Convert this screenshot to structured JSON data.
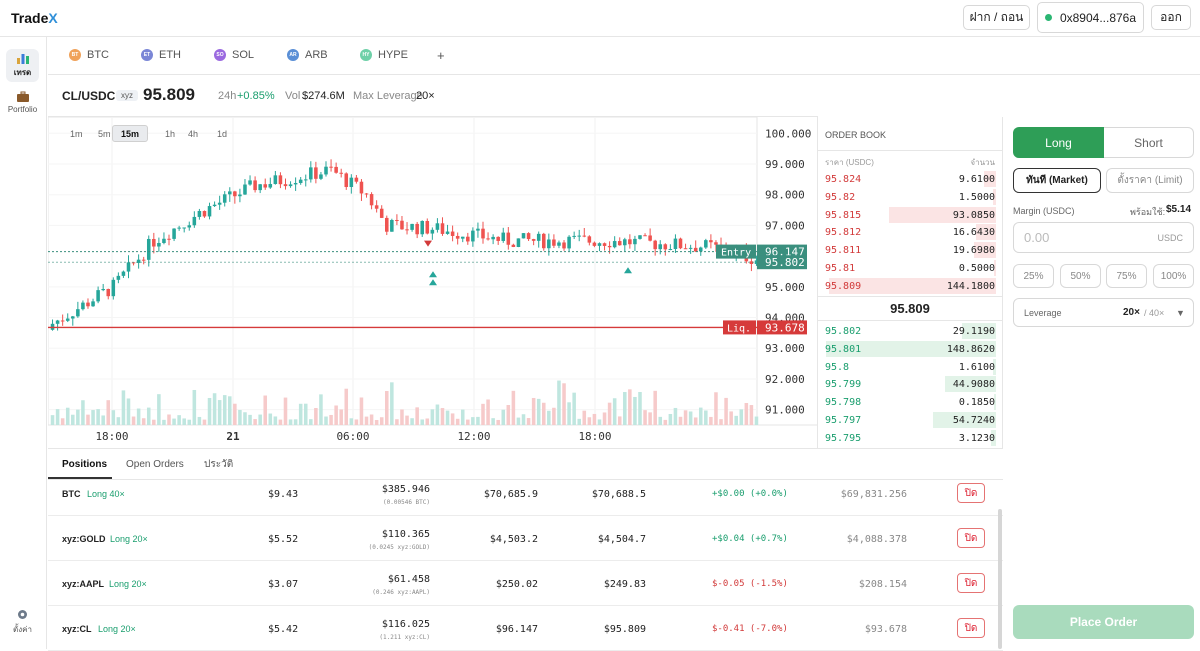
{
  "app": {
    "logo_main": "Trade",
    "logo_accent": "X"
  },
  "topbar": {
    "deposit_label": "ฝาก / ถอน",
    "wallet_address": "0x8904...876a",
    "logout_label": "ออก"
  },
  "sidebar": {
    "items": [
      {
        "label": "เทรด",
        "icon": "chart-icon"
      },
      {
        "label": "Portfolio",
        "icon": "briefcase-icon"
      },
      {
        "label": "ตั้งค่า",
        "icon": "gear-icon"
      }
    ]
  },
  "assets": [
    {
      "symbol": "BTC",
      "badge": "BT",
      "color": "#f0a25a"
    },
    {
      "symbol": "ETH",
      "badge": "ET",
      "color": "#7a86d6"
    },
    {
      "symbol": "SOL",
      "badge": "SO",
      "color": "#9b6ae0"
    },
    {
      "symbol": "ARB",
      "badge": "AR",
      "color": "#5a8fd6"
    },
    {
      "symbol": "HYPE",
      "badge": "HY",
      "color": "#6ed0a8"
    }
  ],
  "add_tab": "+",
  "market": {
    "pair": "CL/USDC",
    "tag": "xyz",
    "price": "95.809",
    "change_label": "24h",
    "change": "+0.85%",
    "vol_label": "Vol",
    "vol": "$274.6M",
    "lev_label": "Max Leverage",
    "lev": "20×"
  },
  "timeframes": [
    "1m",
    "5m",
    "15m",
    "1h",
    "4h",
    "1d"
  ],
  "active_timeframe": "15m",
  "chart_data": {
    "type": "candlestick",
    "y_ticks": [
      "100.000",
      "99.000",
      "98.000",
      "97.000",
      "95.000",
      "94.000",
      "93.000",
      "92.000",
      "91.000"
    ],
    "x_ticks": [
      "18:00",
      "21",
      "06:00",
      "12:00",
      "18:00"
    ],
    "entry_label": "Entry",
    "entry_price": "96.147",
    "current_price": "95.802",
    "liq_label": "Liq.",
    "liq_price": "93.678",
    "ylim": [
      90.5,
      100.4
    ],
    "colors": {
      "up": "#26a69a",
      "down": "#ef5350",
      "liq": "#d63a3a",
      "entry": "#3a8f7e"
    }
  },
  "orderbook": {
    "title": "ORDER BOOK",
    "col_price": "ราคา (USDC)",
    "col_qty": "จำนวน",
    "asks": [
      {
        "price": "95.824",
        "qty": "9.6100",
        "depth": 0.07
      },
      {
        "price": "95.82",
        "qty": "1.5000",
        "depth": 0.02
      },
      {
        "price": "95.815",
        "qty": "93.0850",
        "depth": 0.63
      },
      {
        "price": "95.812",
        "qty": "16.6430",
        "depth": 0.12
      },
      {
        "price": "95.811",
        "qty": "19.6980",
        "depth": 0.13
      },
      {
        "price": "95.81",
        "qty": "0.5000",
        "depth": 0.01
      },
      {
        "price": "95.809",
        "qty": "144.1800",
        "depth": 0.98
      }
    ],
    "mid": "95.809",
    "bids": [
      {
        "price": "95.802",
        "qty": "29.1190",
        "depth": 0.2
      },
      {
        "price": "95.801",
        "qty": "148.8620",
        "depth": 1.0
      },
      {
        "price": "95.8",
        "qty": "1.6100",
        "depth": 0.02
      },
      {
        "price": "95.799",
        "qty": "44.9080",
        "depth": 0.3
      },
      {
        "price": "95.798",
        "qty": "0.1850",
        "depth": 0.01
      },
      {
        "price": "95.797",
        "qty": "54.7240",
        "depth": 0.37
      },
      {
        "price": "95.795",
        "qty": "3.1230",
        "depth": 0.03
      }
    ]
  },
  "order_panel": {
    "long": "Long",
    "short": "Short",
    "market": "ทันที (Market)",
    "limit": "ตั้งราคา (Limit)",
    "margin_label": "Margin (USDC)",
    "available_label": "พร้อมใช้:",
    "available": "$5.14",
    "amount_placeholder": "0.00",
    "currency": "USDC",
    "pct": [
      "25%",
      "50%",
      "75%",
      "100%"
    ],
    "leverage_label": "Leverage",
    "leverage": "20×",
    "leverage_max": "/ 40×",
    "place_order": "Place Order"
  },
  "bottom_tabs": [
    "Positions",
    "Open Orders",
    "ประวัติ"
  ],
  "positions": [
    {
      "sym": "BTC",
      "side": "Long 40×",
      "margin": "$9.43",
      "size": "$385.946",
      "size_sub": "(0.00546 BTC)",
      "entry": "$70,685.9",
      "mark": "$70,688.5",
      "pnl": "+$0.00 (+0.0%)",
      "pnl_color": "#1a9e6e",
      "liq": "$69,831.256",
      "close": "ปิด"
    },
    {
      "sym": "xyz:GOLD",
      "side": "Long 20×",
      "margin": "$5.52",
      "size": "$110.365",
      "size_sub": "(0.0245 xyz:GOLD)",
      "entry": "$4,503.2",
      "mark": "$4,504.7",
      "pnl": "+$0.04 (+0.7%)",
      "pnl_color": "#1a9e6e",
      "liq": "$4,088.378",
      "close": "ปิด"
    },
    {
      "sym": "xyz:AAPL",
      "side": "Long 20×",
      "margin": "$3.07",
      "size": "$61.458",
      "size_sub": "(0.246 xyz:AAPL)",
      "entry": "$250.02",
      "mark": "$249.83",
      "pnl": "$-0.05 (-1.5%)",
      "pnl_color": "#d23a3a",
      "liq": "$208.154",
      "close": "ปิด"
    },
    {
      "sym": "xyz:CL",
      "side": "Long 20×",
      "margin": "$5.42",
      "size": "$116.025",
      "size_sub": "(1.211 xyz:CL)",
      "entry": "$96.147",
      "mark": "$95.809",
      "pnl": "$-0.41 (-7.0%)",
      "pnl_color": "#d23a3a",
      "liq": "$93.678",
      "close": "ปิด"
    }
  ]
}
